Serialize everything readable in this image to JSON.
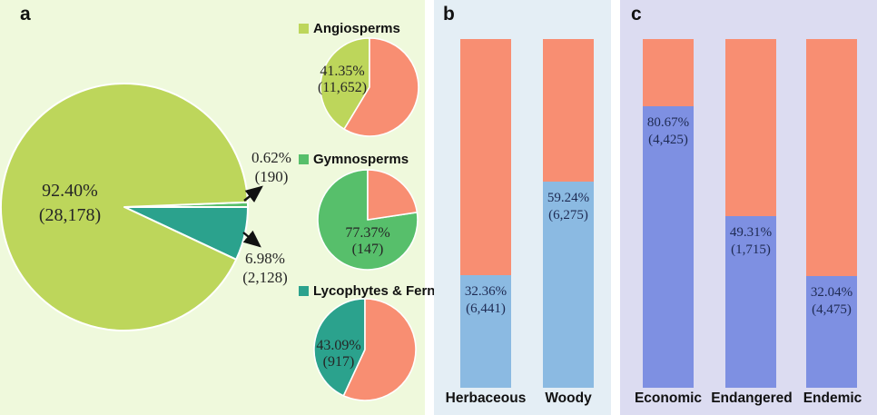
{
  "colors": {
    "panel_a_bg": "#eff9dc",
    "panel_b_bg": "#e4eef5",
    "panel_c_bg": "#dcdcf1",
    "angiosperm_green": "#bdd65b",
    "gymnosperm_green": "#57bf6b",
    "fern_teal": "#2ba28d",
    "salmon": "#f88e72",
    "herb_blue": "#8bbae2",
    "econ_purple": "#7e90e2",
    "pie_label_text": "#262626",
    "bar_label_text": "#1e2a52",
    "arrow_color": "#111111"
  },
  "panel_a": {
    "letter": "a",
    "big_pie": {
      "main_label": {
        "pct": "92.40%",
        "count": "(28,178)"
      },
      "gym_label": {
        "pct": "0.62%",
        "count": "(190)"
      },
      "fern_label": {
        "pct": "6.98%",
        "count": "(2,128)"
      }
    },
    "legend": [
      {
        "label": "Angiosperms"
      },
      {
        "label": "Gymnosperms"
      },
      {
        "label": "Lycophytes & Ferns"
      }
    ],
    "small_pies": [
      {
        "pct": "41.35%",
        "count": "(11,652)"
      },
      {
        "pct": "77.37%",
        "count": "(147)"
      },
      {
        "pct": "43.09%",
        "count": "(917)"
      }
    ]
  },
  "panel_b": {
    "letter": "b",
    "bars": [
      {
        "category": "Herbaceous",
        "pct": "32.36%",
        "count": "(6,441)"
      },
      {
        "category": "Woody",
        "pct": "59.24%",
        "count": "(6,275)"
      }
    ]
  },
  "panel_c": {
    "letter": "c",
    "bars": [
      {
        "category": "Economic",
        "pct": "80.67%",
        "count": "(4,425)"
      },
      {
        "category": "Endangered",
        "pct": "49.31%",
        "count": "(1,715)"
      },
      {
        "category": "Endemic",
        "pct": "32.04%",
        "count": "(4,475)"
      }
    ]
  },
  "chart_data": [
    {
      "type": "pie",
      "name": "all-species-composition",
      "slices": [
        {
          "label": "Angiosperms",
          "pct": 92.4,
          "count": 28178
        },
        {
          "label": "Gymnosperms",
          "pct": 0.62,
          "count": 190
        },
        {
          "label": "Lycophytes & Ferns",
          "pct": 6.98,
          "count": 2128
        }
      ]
    },
    {
      "type": "pie",
      "name": "angiosperms-share",
      "title": "Angiosperms",
      "slices": [
        {
          "label": "Angiosperms highlighted",
          "pct": 41.35,
          "count": 11652
        },
        {
          "label": "remainder",
          "pct": 58.65
        }
      ]
    },
    {
      "type": "pie",
      "name": "gymnosperms-share",
      "title": "Gymnosperms",
      "slices": [
        {
          "label": "Gymnosperms highlighted",
          "pct": 77.37,
          "count": 147
        },
        {
          "label": "remainder",
          "pct": 22.63
        }
      ]
    },
    {
      "type": "pie",
      "name": "lycophytes-ferns-share",
      "title": "Lycophytes & Ferns",
      "slices": [
        {
          "label": "Lycophytes & Ferns highlighted",
          "pct": 43.09,
          "count": 917
        },
        {
          "label": "remainder",
          "pct": 56.91
        }
      ]
    },
    {
      "type": "bar",
      "name": "growth-form-stacked-bars",
      "stacked": true,
      "ylim": [
        0,
        100
      ],
      "categories": [
        "Herbaceous",
        "Woody"
      ],
      "series": [
        {
          "name": "highlighted share",
          "unit": "percent",
          "values": [
            32.36,
            59.24
          ],
          "counts": [
            6441,
            6275
          ]
        },
        {
          "name": "remainder",
          "unit": "percent",
          "values": [
            67.64,
            40.76
          ]
        }
      ]
    },
    {
      "type": "bar",
      "name": "species-group-stacked-bars",
      "stacked": true,
      "ylim": [
        0,
        100
      ],
      "categories": [
        "Economic",
        "Endangered",
        "Endemic"
      ],
      "series": [
        {
          "name": "highlighted share",
          "unit": "percent",
          "values": [
            80.67,
            49.31,
            32.04
          ],
          "counts": [
            4425,
            1715,
            4475
          ]
        },
        {
          "name": "remainder",
          "unit": "percent",
          "values": [
            19.33,
            50.69,
            67.96
          ]
        }
      ]
    }
  ]
}
